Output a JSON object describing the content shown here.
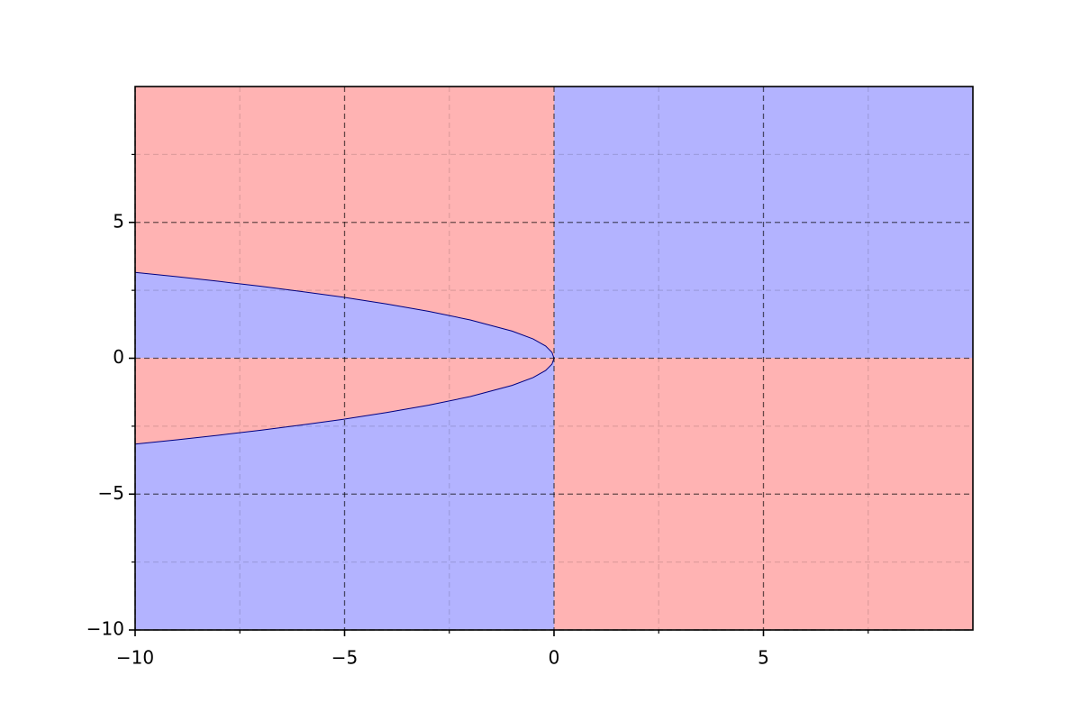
{
  "chart_data": {
    "type": "region",
    "xlim": [
      -10,
      10
    ],
    "ylim": [
      -10,
      10
    ],
    "xticks": [
      {
        "value": -10,
        "label": "−10"
      },
      {
        "value": -5,
        "label": "−5"
      },
      0,
      5
    ],
    "yticks": [
      {
        "value": -10,
        "label": "−10"
      },
      {
        "value": -5,
        "label": "−5"
      },
      0,
      5
    ],
    "xminor": [
      -7.5,
      -2.5,
      2.5,
      7.5
    ],
    "yminor": [
      -7.5,
      -2.5,
      2.5,
      7.5
    ],
    "grid": true,
    "regions": [
      {
        "color": "#b3b3ff",
        "x": [
          0,
          10,
          10,
          0
        ],
        "y": [
          0,
          0,
          10,
          10
        ]
      },
      {
        "color": "#ffb3b3",
        "x": [
          0,
          10,
          10,
          0
        ],
        "y": [
          -10,
          -10,
          0,
          0
        ]
      },
      {
        "color": "#ffb3b3",
        "x": [
          -10,
          0,
          0,
          -0.05,
          -0.2,
          -0.5,
          -1,
          -2,
          -3,
          -4,
          -5,
          -6,
          -7,
          -8,
          -9,
          -10
        ],
        "y": [
          10,
          10,
          0,
          0.22,
          0.45,
          0.71,
          1,
          1.41,
          1.73,
          2,
          2.24,
          2.45,
          2.65,
          2.83,
          3,
          3.16
        ]
      },
      {
        "color": "#b3b3ff",
        "x": [
          -10,
          -10,
          -9,
          -8,
          -7,
          -6,
          -5,
          -4,
          -3,
          -2,
          -1,
          -0.5,
          -0.2,
          -0.05,
          0
        ],
        "y": [
          0,
          3.16,
          3,
          2.83,
          2.65,
          2.45,
          2.24,
          2,
          1.73,
          1.41,
          1,
          0.71,
          0.45,
          0.22,
          0
        ]
      },
      {
        "color": "#ffb3b3",
        "x": [
          -10,
          -10,
          -9,
          -8,
          -7,
          -6,
          -5,
          -4,
          -3,
          -2,
          -1,
          -0.5,
          -0.2,
          -0.05,
          0
        ],
        "y": [
          0,
          -3.16,
          -3,
          -2.83,
          -2.65,
          -2.45,
          -2.24,
          -2,
          -1.73,
          -1.41,
          -1,
          -0.71,
          -0.45,
          -0.22,
          0
        ]
      },
      {
        "color": "#b3b3ff",
        "x": [
          -10,
          0,
          0,
          -0.05,
          -0.2,
          -0.5,
          -1,
          -2,
          -3,
          -4,
          -5,
          -6,
          -7,
          -8,
          -9,
          -10
        ],
        "y": [
          -10,
          -10,
          0,
          -0.22,
          -0.45,
          -0.71,
          -1,
          -1.41,
          -1.73,
          -2,
          -2.24,
          -2.45,
          -2.65,
          -2.83,
          -3,
          -3.16
        ]
      }
    ],
    "boundary_color": "#000080"
  }
}
